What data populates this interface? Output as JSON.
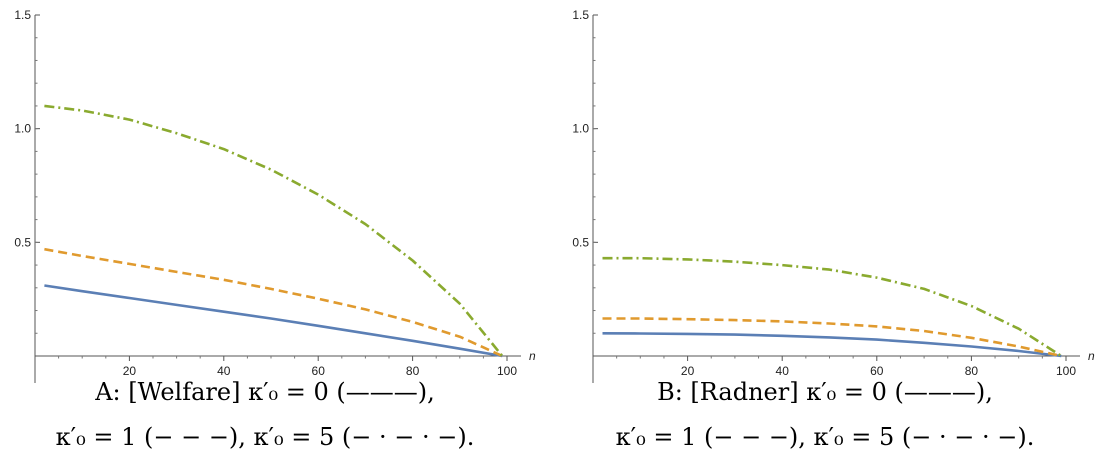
{
  "chart_data": [
    {
      "type": "line",
      "xlabel": "n",
      "ylabel": "",
      "xlim": [
        0,
        100
      ],
      "ylim": [
        0,
        1.5
      ],
      "x_ticks": [
        "20",
        "40",
        "60",
        "80",
        "100"
      ],
      "y_ticks": [
        "0.5",
        "1.0",
        "1.5"
      ],
      "caption_lines": [
        "A: [Welfare] κ′₀ = 0 (———),",
        "κ′₀ = 1 (− − −), κ′₀ = 5 (− · − · −)."
      ],
      "series": [
        {
          "style": "solid",
          "color": "#5b7fb5",
          "x": [
            2,
            10,
            20,
            30,
            40,
            50,
            60,
            70,
            80,
            90,
            99
          ],
          "y": [
            0.31,
            0.285,
            0.255,
            0.225,
            0.195,
            0.165,
            0.133,
            0.1,
            0.067,
            0.032,
            0.0
          ]
        },
        {
          "style": "dashed",
          "color": "#e09a2e",
          "x": [
            2,
            10,
            20,
            30,
            40,
            50,
            60,
            70,
            80,
            90,
            99
          ],
          "y": [
            0.47,
            0.44,
            0.405,
            0.37,
            0.335,
            0.295,
            0.252,
            0.205,
            0.15,
            0.085,
            0.0
          ]
        },
        {
          "style": "dashdot",
          "color": "#8aaa2f",
          "x": [
            2,
            10,
            20,
            30,
            40,
            50,
            60,
            70,
            80,
            90,
            99
          ],
          "y": [
            1.1,
            1.08,
            1.04,
            0.98,
            0.91,
            0.82,
            0.71,
            0.58,
            0.42,
            0.23,
            0.0
          ]
        }
      ]
    },
    {
      "type": "line",
      "xlabel": "n",
      "ylabel": "",
      "xlim": [
        0,
        100
      ],
      "ylim": [
        0,
        1.5
      ],
      "x_ticks": [
        "20",
        "40",
        "60",
        "80",
        "100"
      ],
      "y_ticks": [
        "0.5",
        "1.0",
        "1.5"
      ],
      "caption_lines": [
        "B: [Radner] κ′₀ = 0 (———),",
        "κ′₀ = 1 (− − −), κ′₀ = 5 (− · − · −)."
      ],
      "series": [
        {
          "style": "solid",
          "color": "#5b7fb5",
          "x": [
            2,
            10,
            20,
            30,
            40,
            50,
            60,
            70,
            80,
            90,
            99
          ],
          "y": [
            0.1,
            0.099,
            0.097,
            0.094,
            0.089,
            0.082,
            0.072,
            0.058,
            0.042,
            0.022,
            0.0
          ]
        },
        {
          "style": "dashed",
          "color": "#e09a2e",
          "x": [
            2,
            10,
            20,
            30,
            40,
            50,
            60,
            70,
            80,
            90,
            99
          ],
          "y": [
            0.165,
            0.165,
            0.162,
            0.158,
            0.152,
            0.143,
            0.13,
            0.11,
            0.08,
            0.042,
            0.0
          ]
        },
        {
          "style": "dashdot",
          "color": "#8aaa2f",
          "x": [
            2,
            10,
            20,
            30,
            40,
            50,
            60,
            70,
            80,
            90,
            99
          ],
          "y": [
            0.43,
            0.43,
            0.425,
            0.415,
            0.4,
            0.38,
            0.345,
            0.295,
            0.22,
            0.12,
            0.0
          ]
        }
      ]
    }
  ]
}
